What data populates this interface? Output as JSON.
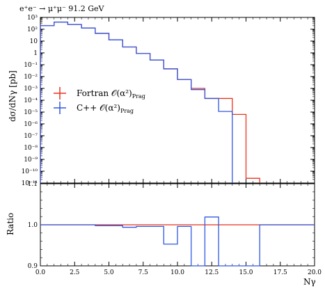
{
  "chart_data": [
    {
      "type": "step",
      "title": "e⁺e⁻ → μ⁺μ⁻ 91.2 GeV",
      "ylabel": "dσ/dNγ [pb]",
      "yscale": "log",
      "ylim_exp": [
        -11,
        3
      ],
      "y_tick_labels": [
        "10³",
        "10²",
        "10",
        "1",
        "10⁻¹",
        "10⁻²",
        "10⁻³",
        "10⁻⁴",
        "10⁻⁵",
        "10⁻⁶",
        "10⁻⁷",
        "10⁻⁸",
        "10⁻⁹",
        "10⁻¹⁰",
        "10⁻¹¹"
      ],
      "xlim": [
        0,
        20
      ],
      "legend_position": "middle-left",
      "bin_edges": [
        0,
        1,
        2,
        3,
        4,
        5,
        6,
        7,
        8,
        9,
        10,
        11,
        12,
        13,
        14,
        15,
        16
      ],
      "series": [
        {
          "name": "Fortran 𝒪(α²)",
          "name_sub": "Prag",
          "color": "#e8321c",
          "log10_values": [
            2.3,
            2.6,
            2.4,
            2.1,
            1.65,
            1.1,
            0.5,
            -0.05,
            -0.6,
            -1.35,
            -2.25,
            -3.0,
            -3.85,
            -3.85,
            -5.2,
            -10.6
          ]
        },
        {
          "name": "C++ 𝒪(α²)",
          "name_sub": "Prag",
          "color": "#2f58e0",
          "log10_values": [
            2.3,
            2.6,
            2.4,
            2.1,
            1.65,
            1.1,
            0.5,
            -0.05,
            -0.6,
            -1.35,
            -2.25,
            -3.1,
            -3.85,
            -4.95,
            null,
            null
          ]
        }
      ]
    },
    {
      "type": "step",
      "ylabel": "Ratio",
      "xlabel": "Nγ",
      "ylim": [
        0.9,
        1.1
      ],
      "xlim": [
        0,
        20
      ],
      "x_ticks": [
        0,
        2.5,
        5,
        7.5,
        10,
        12.5,
        15,
        17.5,
        20
      ],
      "x_tick_labels": [
        "0.0",
        "2.5",
        "5.0",
        "7.5",
        "10.0",
        "12.5",
        "15.0",
        "17.5",
        "20.0"
      ],
      "y_ticks": [
        0.9,
        1.0
      ],
      "y_tick_labels": [
        "0.9",
        "1.0"
      ],
      "reference_series": {
        "name": "Fortran 𝒪(α²)",
        "color": "#e8321c",
        "value": 1.0,
        "x_range": [
          0,
          20
        ]
      },
      "ratio_series": {
        "name": "C++ 𝒪(α²)",
        "color": "#2f58e0",
        "bin_edges": [
          0,
          1,
          2,
          3,
          4,
          5,
          6,
          7,
          8,
          9,
          10,
          11,
          12,
          13,
          14,
          15,
          16,
          17,
          18,
          19,
          20
        ],
        "values": [
          1.0,
          1.0,
          1.0,
          1.0,
          0.998,
          0.998,
          0.994,
          0.996,
          0.996,
          0.953,
          0.996,
          0.0,
          1.019,
          0.0,
          0.0,
          0.0,
          1.0,
          1.0,
          1.0,
          1.0
        ]
      }
    }
  ]
}
